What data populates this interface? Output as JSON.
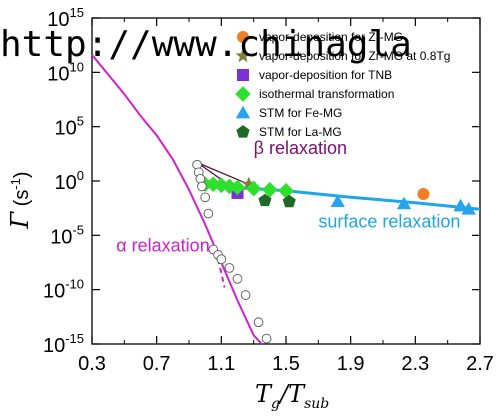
{
  "watermark": "http://www.chinagla",
  "chart_data": {
    "type": "scatter",
    "xlabel": "Tg/Tsub",
    "ylabel": "Γ (s-1)",
    "xlim": [
      0.3,
      2.7
    ],
    "ylim_log10": [
      -15,
      15
    ],
    "y_scale": "log",
    "x_ticks": [
      "0.3",
      "0.7",
      "1.1",
      "1.5",
      "1.9",
      "2.3",
      "2.7"
    ],
    "x_tick_values": [
      0.3,
      0.7,
      1.1,
      1.5,
      1.9,
      2.3,
      2.7
    ],
    "y_ticks": [
      {
        "base": "10",
        "exp": "15",
        "log": 15
      },
      {
        "base": "10",
        "exp": "10",
        "log": 10
      },
      {
        "base": "10",
        "exp": "5",
        "log": 5
      },
      {
        "base": "10",
        "exp": "0",
        "log": 0
      },
      {
        "base": "10",
        "exp": "-5",
        "log": -5
      },
      {
        "base": "10",
        "exp": "-10",
        "log": -10
      },
      {
        "base": "10",
        "exp": "-15",
        "log": -15
      }
    ],
    "legend": [
      {
        "label": "vapor-deposition for Zr-MG",
        "marker": "circle",
        "color": "#f07f29"
      },
      {
        "label": "vapor-deposition for Zr-MG at 0.8Tg",
        "marker": "star",
        "color": "#7f7f3a"
      },
      {
        "label": "vapor-deposition for TNB",
        "marker": "square",
        "color": "#7b2fd6"
      },
      {
        "label": "isothermal transformation",
        "marker": "diamond",
        "color": "#2de02d"
      },
      {
        "label": "STM for Fe-MG",
        "marker": "triangle",
        "color": "#27a4ef"
      },
      {
        "label": "STM for La-MG",
        "marker": "pentagon",
        "color": "#1d6b24"
      }
    ],
    "annotations": [
      {
        "text": "β relaxation",
        "color": "#7a1070",
        "x": 1.3,
        "y_log": 2.5
      },
      {
        "text": "α relaxation",
        "color": "#d020d0",
        "x": 0.45,
        "y_log": -6.5
      },
      {
        "text": "surface relaxation",
        "color": "#1ea6ea",
        "x": 1.7,
        "y_log": -4.3
      }
    ],
    "series": [
      {
        "name": "vapor-deposition for Zr-MG",
        "marker": "circle",
        "color": "#f07f29",
        "points": [
          [
            2.35,
            -1.2
          ]
        ]
      },
      {
        "name": "vapor-deposition for Zr-MG at 0.8Tg",
        "marker": "star",
        "color": "#7f7f3a",
        "points": [
          [
            1.27,
            -0.3
          ]
        ]
      },
      {
        "name": "vapor-deposition for TNB",
        "marker": "square",
        "color": "#7b2fd6",
        "points": [
          [
            1.2,
            -1.1
          ]
        ]
      },
      {
        "name": "isothermal transformation",
        "marker": "diamond",
        "color": "#2de02d",
        "points": [
          [
            1.0,
            -0.3
          ],
          [
            1.05,
            -0.3
          ],
          [
            1.1,
            -0.4
          ],
          [
            1.15,
            -0.5
          ],
          [
            1.2,
            -0.6
          ],
          [
            1.3,
            -0.7
          ],
          [
            1.4,
            -0.8
          ],
          [
            1.5,
            -0.9
          ]
        ]
      },
      {
        "name": "STM for Fe-MG",
        "marker": "triangle",
        "color": "#27a4ef",
        "points": [
          [
            1.82,
            -1.9
          ],
          [
            2.23,
            -2.1
          ],
          [
            2.58,
            -2.3
          ],
          [
            2.63,
            -2.6
          ]
        ]
      },
      {
        "name": "STM for La-MG",
        "marker": "pentagon",
        "color": "#1d6b24",
        "points": [
          [
            1.37,
            -1.8
          ],
          [
            1.52,
            -1.9
          ]
        ]
      },
      {
        "name": "open circles",
        "marker": "open-circle",
        "color": "#555555",
        "points": [
          [
            0.95,
            1.5
          ],
          [
            0.96,
            0.8
          ],
          [
            0.97,
            0.2
          ],
          [
            0.98,
            -0.5
          ],
          [
            1.0,
            -1.5
          ],
          [
            1.02,
            -3.0
          ],
          [
            1.05,
            -6.3
          ],
          [
            1.08,
            -6.8
          ],
          [
            1.1,
            -7.2
          ],
          [
            1.15,
            -8.0
          ],
          [
            1.2,
            -9.0
          ],
          [
            1.25,
            -10.5
          ],
          [
            1.33,
            -13.0
          ],
          [
            1.38,
            -14.5
          ]
        ]
      }
    ],
    "curves": [
      {
        "name": "alpha fit",
        "color": "#d020d0",
        "style": "solid",
        "points": [
          [
            0.3,
            11.6
          ],
          [
            0.5,
            8.0
          ],
          [
            0.6,
            6.0
          ],
          [
            0.7,
            4.2
          ],
          [
            0.8,
            2.0
          ],
          [
            0.9,
            -0.8
          ],
          [
            1.0,
            -4.0
          ],
          [
            1.1,
            -7.5
          ],
          [
            1.2,
            -11.0
          ],
          [
            1.3,
            -14.2
          ],
          [
            1.35,
            -15.0
          ]
        ]
      },
      {
        "name": "alpha dashed extension",
        "color": "#d020d0",
        "style": "dashed",
        "points": [
          [
            1.08,
            -7.2
          ],
          [
            1.12,
            -9.8
          ]
        ]
      },
      {
        "name": "beta line upper",
        "color": "#5a1040",
        "style": "solid",
        "points": [
          [
            0.95,
            1.7
          ],
          [
            1.27,
            -0.3
          ]
        ]
      },
      {
        "name": "beta line lower",
        "color": "#5a1040",
        "style": "solid",
        "points": [
          [
            0.95,
            1.7
          ],
          [
            1.2,
            -0.9
          ]
        ]
      },
      {
        "name": "surface relaxation fit",
        "color": "#1ea6ea",
        "style": "solid",
        "points": [
          [
            1.2,
            -0.6
          ],
          [
            1.5,
            -0.9
          ],
          [
            1.9,
            -1.5
          ],
          [
            2.3,
            -2.0
          ],
          [
            2.7,
            -2.6
          ]
        ]
      }
    ]
  }
}
